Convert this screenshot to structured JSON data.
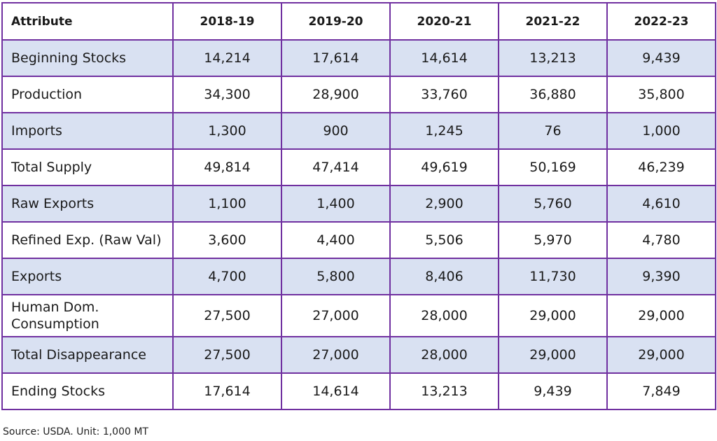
{
  "table": {
    "headers": [
      "Attribute",
      "2018-19",
      "2019-20",
      "2020-21",
      "2021-22",
      "2022-23"
    ],
    "rows": [
      {
        "label": "Beginning Stocks",
        "values": [
          "14,214",
          "17,614",
          "14,614",
          "13,213",
          "9,439"
        ]
      },
      {
        "label": "Production",
        "values": [
          "34,300",
          "28,900",
          "33,760",
          "36,880",
          "35,800"
        ]
      },
      {
        "label": "Imports",
        "values": [
          "1,300",
          "900",
          "1,245",
          "76",
          "1,000"
        ]
      },
      {
        "label": "Total Supply",
        "values": [
          "49,814",
          "47,414",
          "49,619",
          "50,169",
          "46,239"
        ]
      },
      {
        "label": "Raw Exports",
        "values": [
          "1,100",
          "1,400",
          "2,900",
          "5,760",
          "4,610"
        ]
      },
      {
        "label": "Refined Exp. (Raw Val)",
        "values": [
          "3,600",
          "4,400",
          "5,506",
          "5,970",
          "4,780"
        ]
      },
      {
        "label": "Exports",
        "values": [
          "4,700",
          "5,800",
          "8,406",
          "11,730",
          "9,390"
        ]
      },
      {
        "label": "Human Dom. Consumption",
        "values": [
          "27,500",
          "27,000",
          "28,000",
          "29,000",
          "29,000"
        ]
      },
      {
        "label": "Total Disappearance",
        "values": [
          "27,500",
          "27,000",
          "28,000",
          "29,000",
          "29,000"
        ]
      },
      {
        "label": "Ending Stocks",
        "values": [
          "17,614",
          "14,614",
          "13,213",
          "9,439",
          "7,849"
        ]
      }
    ]
  },
  "source": "Source: USDA. Unit: 1,000 MT",
  "colors": {
    "border": "#7030a0",
    "shaded_row": "#d9e1f2"
  }
}
